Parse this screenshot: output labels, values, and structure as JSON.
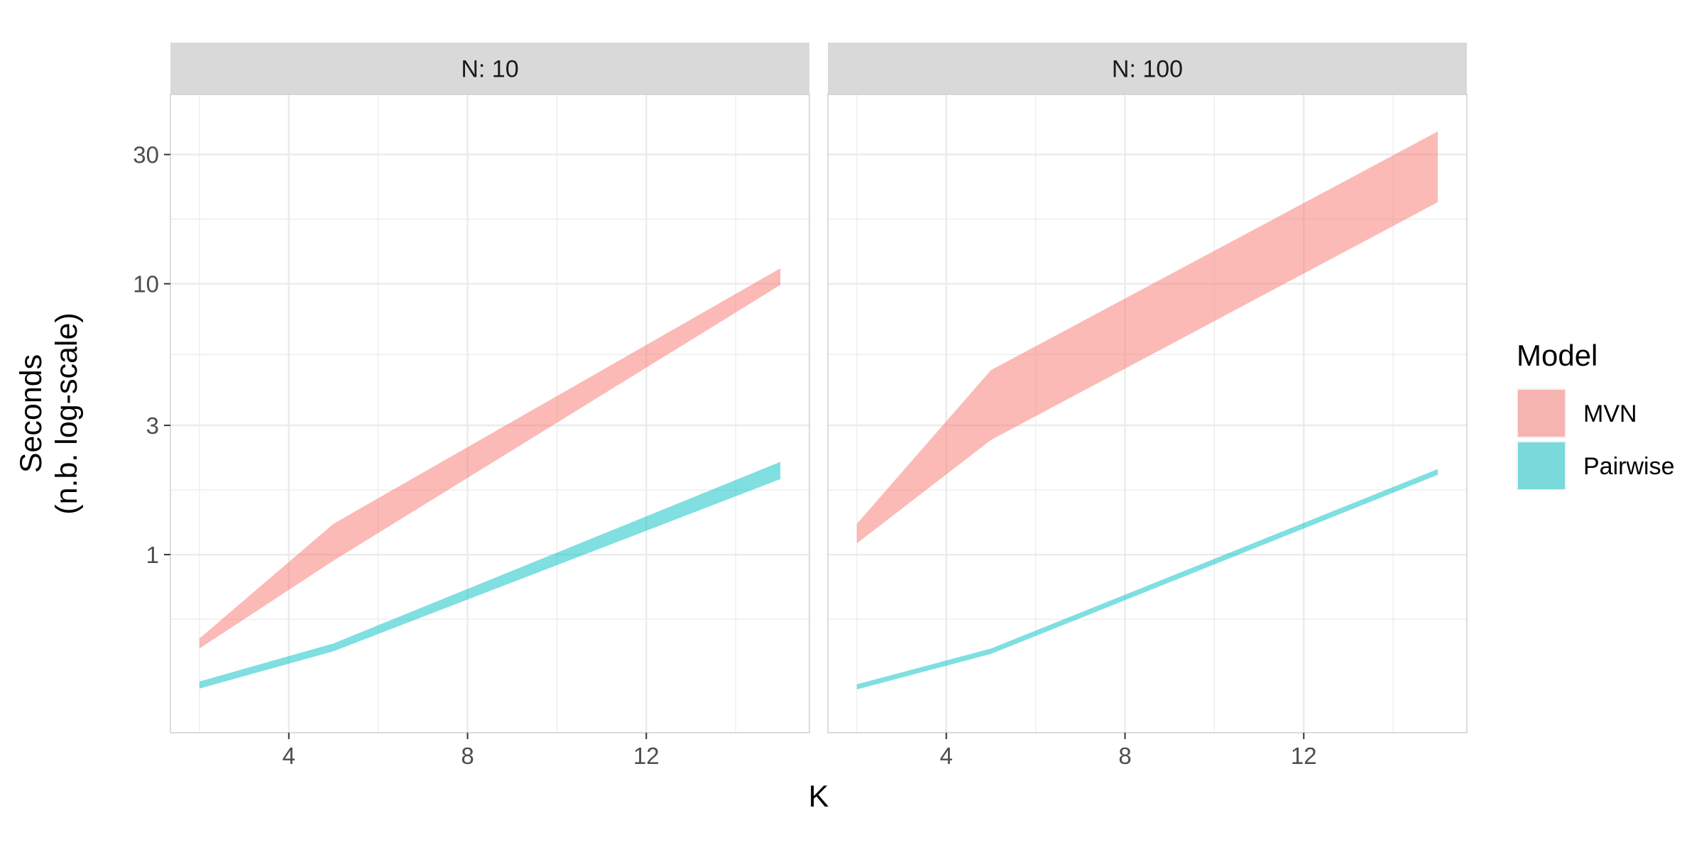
{
  "chart_data": {
    "type": "area",
    "chart_subtype": "ribbon",
    "facet_variable": "N",
    "facets": [
      {
        "label": "N: 10",
        "series": [
          {
            "name": "MVN",
            "x": [
              2,
              5,
              15
            ],
            "ymin": [
              0.45,
              0.95,
              9.9
            ],
            "ymax": [
              0.49,
              1.3,
              11.4
            ]
          },
          {
            "name": "Pairwise",
            "x": [
              2,
              5,
              15
            ],
            "ymin": [
              0.32,
              0.44,
              1.9
            ],
            "ymax": [
              0.34,
              0.47,
              2.2
            ]
          }
        ]
      },
      {
        "label": "N: 100",
        "series": [
          {
            "name": "MVN",
            "x": [
              2,
              5,
              15
            ],
            "ymin": [
              1.1,
              2.65,
              20.0
            ],
            "ymax": [
              1.3,
              4.8,
              36.5
            ]
          },
          {
            "name": "Pairwise",
            "x": [
              2,
              5,
              15
            ],
            "ymin": [
              0.318,
              0.43,
              1.97
            ],
            "ymax": [
              0.332,
              0.45,
              2.07
            ]
          }
        ]
      }
    ],
    "xlabel": "K",
    "ylabel": "Seconds\n(n.b. log-scale)",
    "x_ticks": [
      4,
      8,
      12
    ],
    "y_ticks": [
      1,
      3,
      10,
      30
    ],
    "x_range": [
      1.35,
      15.65
    ],
    "y_range": [
      0.22,
      50
    ],
    "y_scale": "log",
    "grid": true,
    "legend": {
      "title": "Model",
      "position": "right",
      "entries": [
        "MVN",
        "Pairwise"
      ]
    },
    "colors": {
      "MVN": "#F8766D",
      "Pairwise": "#00BFC4"
    },
    "fill_alpha": 0.5
  }
}
